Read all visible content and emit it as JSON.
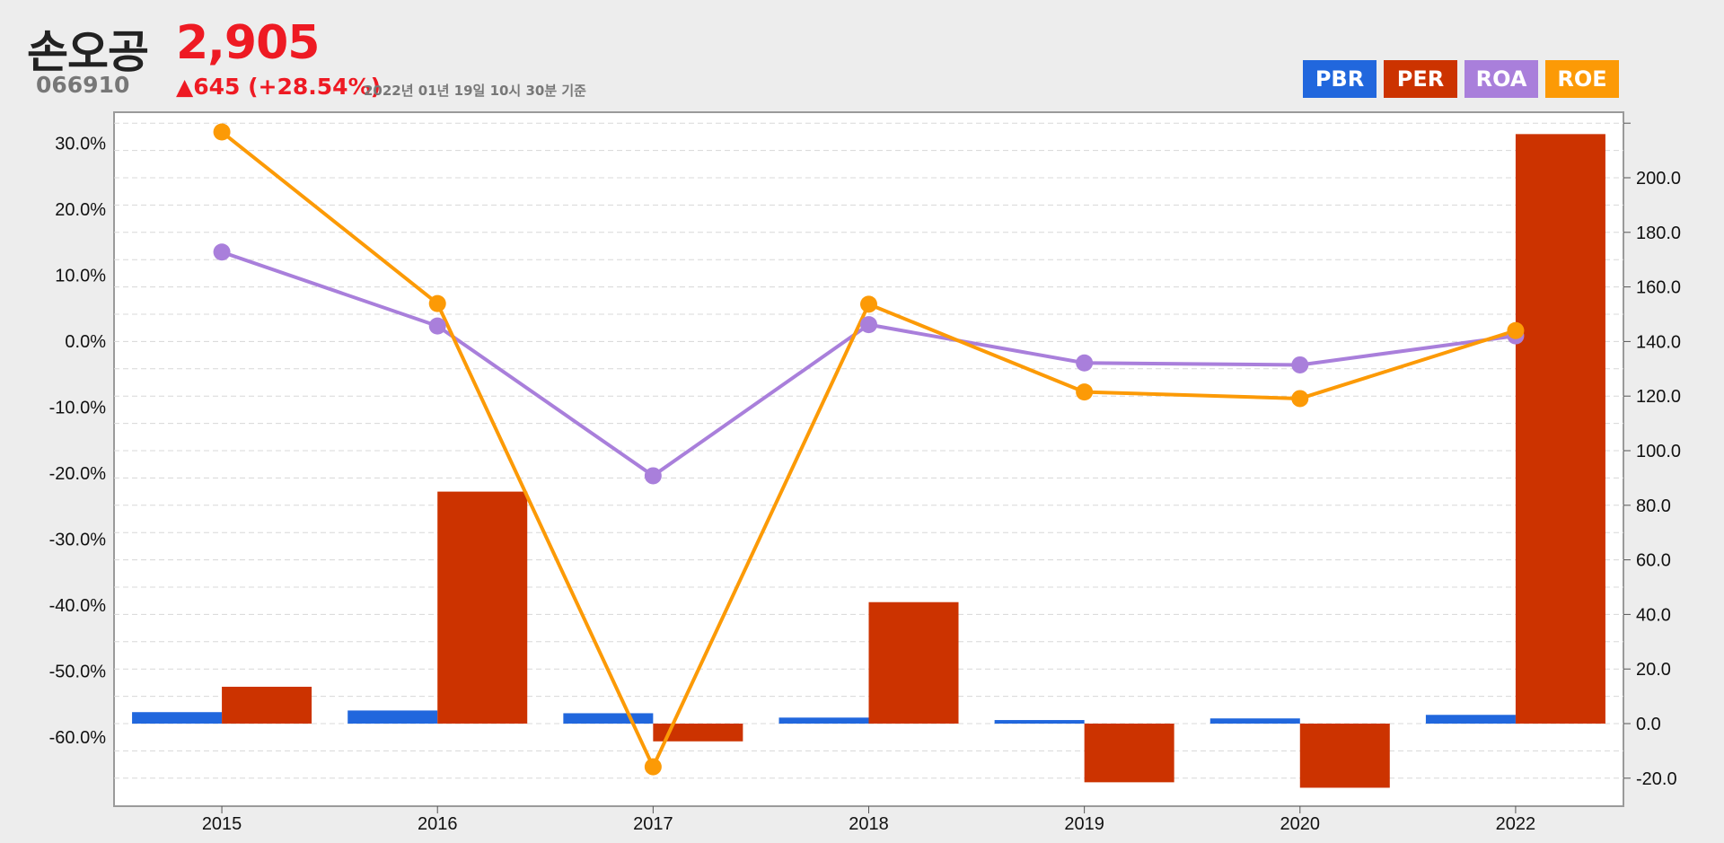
{
  "header": {
    "name": "손오공",
    "code": "066910",
    "price": "2,905",
    "change": "▲645 (+28.54%)",
    "timestamp": "2022년 01년 19일 10시 30분 기준"
  },
  "legend": [
    {
      "label": "PBR",
      "color": "#2167dd"
    },
    {
      "label": "PER",
      "color": "#cc3300"
    },
    {
      "label": "ROA",
      "color": "#a97fdb"
    },
    {
      "label": "ROE",
      "color": "#fc9a06"
    }
  ],
  "chart_data": {
    "type": "bar+line",
    "categories": [
      "2015",
      "2016",
      "2017",
      "2018",
      "2019",
      "2020",
      "2022"
    ],
    "series": [
      {
        "name": "PBR",
        "type": "bar",
        "axis": "right",
        "color": "#2167dd",
        "values": [
          4.2,
          4.8,
          3.8,
          2.2,
          1.3,
          1.9,
          3.2
        ]
      },
      {
        "name": "PER",
        "type": "bar",
        "axis": "right",
        "color": "#cc3300",
        "values": [
          13.5,
          85.0,
          -6.5,
          44.5,
          -21.5,
          -23.5,
          216.0
        ]
      },
      {
        "name": "ROA",
        "type": "line",
        "axis": "left",
        "color": "#a97fdb",
        "values": [
          13.5,
          2.3,
          -20.4,
          2.5,
          -3.3,
          -3.6,
          0.8
        ]
      },
      {
        "name": "ROE",
        "type": "line",
        "axis": "left",
        "color": "#fc9a06",
        "values": [
          31.7,
          5.7,
          -64.5,
          5.6,
          -7.7,
          -8.7,
          1.6
        ]
      }
    ],
    "left_axis": {
      "min": -70,
      "max": 33,
      "ticks": [
        30,
        20,
        10,
        0,
        -10,
        -20,
        -30,
        -40,
        -50,
        -60
      ],
      "tick_labels": [
        "30.0%",
        "20.0%",
        "10.0%",
        "0.0%",
        "-10.0%",
        "-20.0%",
        "-30.0%",
        "-40.0%",
        "-50.0%",
        "-60.0%"
      ]
    },
    "right_axis": {
      "min": -30,
      "max": 224,
      "ticks": [
        200,
        180,
        160,
        140,
        120,
        100,
        80,
        60,
        40,
        20,
        0,
        -20
      ],
      "tick_labels": [
        "200.0",
        "180.0",
        "160.0",
        "140.0",
        "120.0",
        "100.0",
        "80.0",
        "60.0",
        "40.0",
        "20.0",
        "0.0",
        "-20.0"
      ]
    },
    "grid": true
  }
}
